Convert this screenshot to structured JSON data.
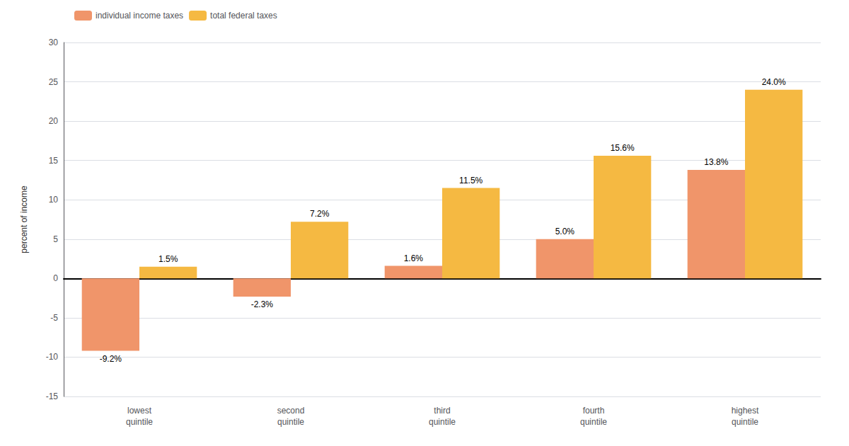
{
  "chart_data": {
    "type": "bar",
    "categories": [
      "lowest\nquintile",
      "second\nquintile",
      "third\nquintile",
      "fourth\nquintile",
      "highest\nquintile"
    ],
    "series": [
      {
        "name": "individual income taxes",
        "color": "#F0956A",
        "values": [
          -9.2,
          -2.3,
          1.6,
          5.0,
          13.8
        ],
        "value_labels": [
          "-9.2%",
          "-2.3%",
          "1.6%",
          "5.0%",
          "13.8%"
        ]
      },
      {
        "name": "total federal taxes",
        "color": "#F5B942",
        "values": [
          1.5,
          7.2,
          11.5,
          15.6,
          24.0
        ],
        "value_labels": [
          "1.5%",
          "7.2%",
          "11.5%",
          "15.6%",
          "24.0%"
        ]
      }
    ],
    "ylabel": "percent of income",
    "ylim": [
      -15,
      30
    ],
    "yticks": [
      -15,
      -10,
      -5,
      0,
      5,
      10,
      15,
      20,
      25,
      30
    ],
    "grid": true,
    "legend": "upper left",
    "data_labels": true
  }
}
